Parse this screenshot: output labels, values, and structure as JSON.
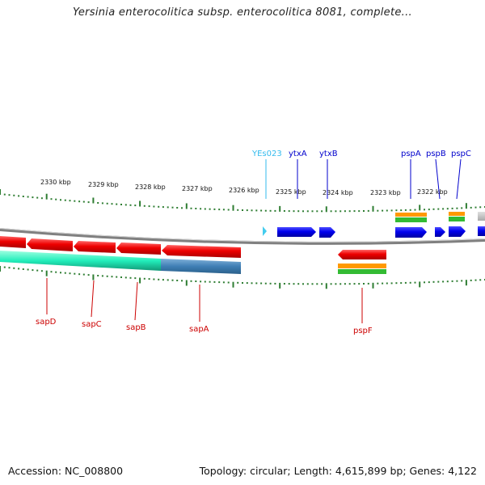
{
  "title": "Yersinia enterocolitica subsp. enterocolitica 8081, complete...",
  "footer": {
    "accession": "Accession: NC_008800",
    "summary": "Topology: circular; Length: 4,615,899 bp; Genes: 4,122"
  },
  "colors": {
    "forward_gene": "#0000ee",
    "reverse_gene": "#ee0000",
    "rna": "#33ccee",
    "backbone": "#808080",
    "tick": "#2e7d32",
    "cds_orange": "#ff9900",
    "cds_green": "#33bb33",
    "reverse_label": "#cc0000",
    "forward_label": "#0000aa"
  },
  "kbp_labels": [
    "2330 kbp",
    "2329 kbp",
    "2328 kbp",
    "2327 kbp",
    "2326 kbp",
    "2325 kbp",
    "2324 kbp",
    "2323 kbp",
    "2322 kbp"
  ],
  "genes_top": [
    {
      "name": "YEs023",
      "color": "#33bbee"
    },
    {
      "name": "ytxA",
      "color": "#0000cc"
    },
    {
      "name": "ytxB",
      "color": "#0000cc"
    },
    {
      "name": "pspA",
      "color": "#0000cc"
    },
    {
      "name": "pspB",
      "color": "#0000cc"
    },
    {
      "name": "pspC",
      "color": "#0000cc"
    }
  ],
  "genes_bottom": [
    {
      "name": "sapD"
    },
    {
      "name": "sapC"
    },
    {
      "name": "sapB"
    },
    {
      "name": "sapA"
    },
    {
      "name": "pspF"
    }
  ]
}
